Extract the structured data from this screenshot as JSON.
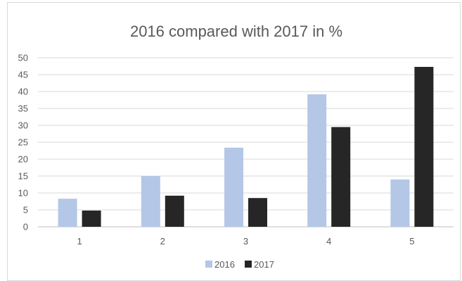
{
  "chart_data": {
    "type": "bar",
    "title": "2016 compared with 2017 in %",
    "xlabel": "",
    "ylabel": "",
    "categories": [
      "1",
      "2",
      "3",
      "4",
      "5"
    ],
    "series": [
      {
        "name": "2016",
        "values": [
          8.3,
          15.0,
          23.4,
          39.2,
          14.0
        ],
        "color": "#b4c7e7"
      },
      {
        "name": "2017",
        "values": [
          4.8,
          9.2,
          8.5,
          29.5,
          47.3
        ],
        "color": "#262626"
      }
    ],
    "ylim": [
      0,
      50
    ],
    "yticks": [
      "0",
      "5",
      "10",
      "15",
      "20",
      "25",
      "30",
      "35",
      "40",
      "45",
      "50"
    ],
    "grid": true,
    "legend_position": "bottom"
  }
}
